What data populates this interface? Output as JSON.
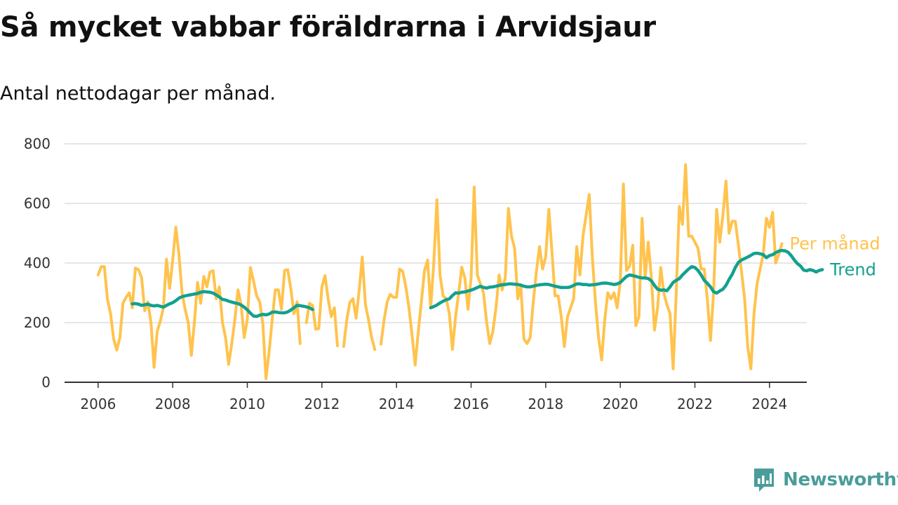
{
  "title": "Så mycket vabbar föräldrarna i Arvidsjaur",
  "subtitle": "Antal nettodagar per månad.",
  "brand": {
    "name": "Newsworthy",
    "icon": "newsworthy-logo-icon",
    "color": "#4a9d99"
  },
  "colors": {
    "monthly": "#ffc34d",
    "trend": "#13a08f",
    "grid": "#dddddd",
    "axis": "#333333"
  },
  "chart_data": {
    "type": "line",
    "title": "Så mycket vabbar föräldrarna i Arvidsjaur",
    "subtitle": "Antal nettodagar per månad.",
    "xlabel": "",
    "ylabel": "",
    "xlim": [
      2005.1,
      2025.0
    ],
    "ylim": [
      0,
      800
    ],
    "x_ticks": [
      2006,
      2008,
      2010,
      2012,
      2014,
      2016,
      2018,
      2020,
      2022,
      2024
    ],
    "y_ticks": [
      0,
      200,
      400,
      600,
      800
    ],
    "grid": "horizontal",
    "legend": "inline-right",
    "series": [
      {
        "name": "Per månad",
        "color": "#ffc34d",
        "x_start": 2006.0,
        "step": 0.0833333,
        "values": [
          360,
          388,
          388,
          280,
          230,
          145,
          108,
          150,
          265,
          285,
          300,
          250,
          383,
          378,
          350,
          240,
          270,
          200,
          50,
          170,
          205,
          250,
          413,
          315,
          410,
          520,
          430,
          300,
          245,
          200,
          90,
          205,
          335,
          265,
          355,
          320,
          370,
          374,
          280,
          320,
          200,
          150,
          60,
          130,
          210,
          310,
          260,
          150,
          210,
          385,
          340,
          290,
          270,
          195,
          12,
          100,
          210,
          310,
          310,
          245,
          375,
          378,
          315,
          230,
          270,
          130,
          null,
          200,
          265,
          258,
          178,
          180,
          320,
          358,
          280,
          220,
          250,
          122,
          null,
          120,
          210,
          268,
          280,
          215,
          310,
          420,
          260,
          210,
          150,
          110,
          null,
          128,
          210,
          270,
          295,
          285,
          285,
          380,
          372,
          320,
          250,
          160,
          58,
          170,
          270,
          375,
          410,
          250,
          400,
          612,
          360,
          290,
          280,
          230,
          110,
          220,
          300,
          386,
          350,
          245,
          350,
          655,
          360,
          330,
          300,
          200,
          130,
          170,
          250,
          360,
          310,
          350,
          583,
          490,
          450,
          280,
          325,
          145,
          130,
          150,
          270,
          370,
          455,
          380,
          420,
          580,
          440,
          290,
          290,
          220,
          120,
          220,
          250,
          280,
          455,
          360,
          490,
          560,
          630,
          420,
          270,
          150,
          75,
          210,
          300,
          280,
          300,
          250,
          340,
          665,
          375,
          390,
          460,
          190,
          220,
          550,
          350,
          470,
          350,
          175,
          250,
          385,
          300,
          260,
          230,
          45,
          300,
          590,
          530,
          730,
          490,
          490,
          470,
          450,
          380,
          380,
          280,
          140,
          300,
          580,
          470,
          560,
          675,
          500,
          540,
          540,
          460,
          370,
          280,
          120,
          45,
          230,
          330,
          380,
          430,
          550,
          520,
          570,
          400,
          430,
          465
        ]
      },
      {
        "name": "Trend",
        "color": "#13a08f",
        "x_start": 2006.9167,
        "step": 0.0833333,
        "values": [
          263,
          264,
          262,
          258,
          260,
          262,
          258,
          256,
          258,
          255,
          252,
          258,
          263,
          267,
          274,
          282,
          287,
          290,
          292,
          294,
          296,
          298,
          302,
          304,
          303,
          302,
          299,
          293,
          286,
          278,
          276,
          272,
          269,
          266,
          264,
          259,
          252,
          243,
          232,
          222,
          221,
          225,
          228,
          226,
          229,
          235,
          236,
          234,
          233,
          233,
          236,
          242,
          250,
          258,
          257,
          255,
          253,
          250,
          244,
          null,
          null,
          null,
          null,
          null,
          null,
          null,
          null,
          null,
          null,
          null,
          null,
          null,
          null,
          null,
          null,
          null,
          null,
          null,
          null,
          null,
          null,
          null,
          null,
          null,
          null,
          null,
          null,
          null,
          null,
          null,
          null,
          null,
          null,
          null,
          null,
          null,
          250,
          254,
          259,
          266,
          272,
          277,
          280,
          291,
          300,
          299,
          302,
          303,
          306,
          309,
          313,
          318,
          322,
          318,
          316,
          319,
          320,
          322,
          325,
          327,
          328,
          330,
          330,
          329,
          328,
          326,
          322,
          320,
          320,
          322,
          325,
          327,
          328,
          329,
          328,
          325,
          322,
          320,
          318,
          318,
          318,
          320,
          325,
          330,
          330,
          328,
          328,
          326,
          327,
          328,
          330,
          332,
          333,
          332,
          330,
          328,
          330,
          335,
          345,
          355,
          360,
          358,
          355,
          352,
          350,
          350,
          348,
          340,
          325,
          312,
          309,
          310,
          307,
          320,
          335,
          342,
          348,
          360,
          370,
          380,
          388,
          385,
          375,
          360,
          342,
          332,
          320,
          304,
          299,
          306,
          312,
          325,
          345,
          362,
          385,
          402,
          410,
          415,
          420,
          426,
          432,
          433,
          431,
          428,
          418,
          425,
          428,
          435,
          440,
          442,
          441,
          436,
          425,
          410,
          398,
          390,
          376,
          374,
          378,
          375,
          370,
          375,
          378
        ]
      }
    ]
  }
}
